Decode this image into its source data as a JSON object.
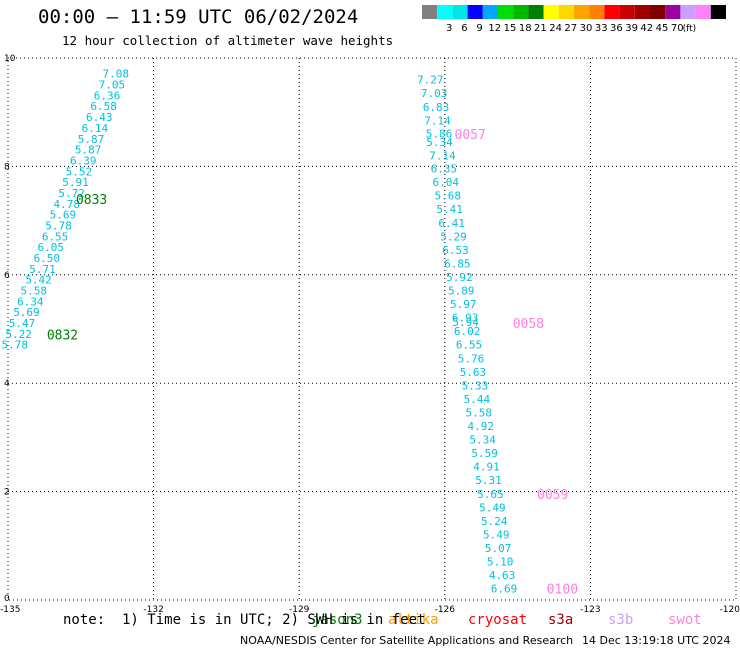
{
  "header": {
    "title": "00:00 – 11:59 UTC 06/02/2024",
    "subtitle": "12 hour collection of altimeter wave heights"
  },
  "colorbar": {
    "colors": [
      "#808080",
      "#00ffff",
      "#00e5e5",
      "#0000ff",
      "#00a8ff",
      "#00e000",
      "#00b800",
      "#008000",
      "#ffff00",
      "#ffd800",
      "#ffa500",
      "#ff7f00",
      "#ff0000",
      "#c80000",
      "#a00000",
      "#800000",
      "#a000a0",
      "#c8a0ff",
      "#ff80ff",
      "#000000"
    ],
    "labels": [
      "3",
      "6",
      "9",
      "12",
      "15",
      "18",
      "21",
      "24",
      "27",
      "30",
      "33",
      "36",
      "39",
      "42",
      "45",
      "70"
    ],
    "unit": "(ft)"
  },
  "axes": {
    "x_ticks": [
      "-135",
      "-132",
      "-129",
      "-126",
      "-123",
      "-120"
    ],
    "y_ticks": [
      "0",
      "2",
      "4",
      "6",
      "8",
      "10"
    ],
    "xlim": [
      -135,
      -120
    ],
    "ylim": [
      0,
      10
    ]
  },
  "tracks": [
    {
      "satellite": "jason3",
      "color": "#00c0e0",
      "points": [
        {
          "lon": -132.78,
          "lat": 9.71,
          "value": "7.08"
        },
        {
          "lon": -132.86,
          "lat": 9.51,
          "value": "7.05"
        },
        {
          "lon": -132.96,
          "lat": 9.31,
          "value": "6.36"
        },
        {
          "lon": -133.03,
          "lat": 9.11,
          "value": "6.58"
        },
        {
          "lon": -133.12,
          "lat": 8.91,
          "value": "6.43"
        },
        {
          "lon": -133.21,
          "lat": 8.71,
          "value": "6.14"
        },
        {
          "lon": -133.29,
          "lat": 8.51,
          "value": "5.87"
        },
        {
          "lon": -133.35,
          "lat": 8.31,
          "value": "5.87"
        },
        {
          "lon": -133.45,
          "lat": 8.11,
          "value": "6.39"
        },
        {
          "lon": -133.54,
          "lat": 7.91,
          "value": "5.52"
        },
        {
          "lon": -133.61,
          "lat": 7.71,
          "value": "5.91"
        },
        {
          "lon": -133.69,
          "lat": 7.51,
          "value": "5.72"
        },
        {
          "lon": -133.79,
          "lat": 7.31,
          "value": "4.78"
        },
        {
          "lon": -133.87,
          "lat": 7.11,
          "value": "5.69"
        },
        {
          "lon": -133.96,
          "lat": 6.91,
          "value": "5.78"
        },
        {
          "lon": -134.03,
          "lat": 6.71,
          "value": "6.55"
        },
        {
          "lon": -134.12,
          "lat": 6.51,
          "value": "6.05"
        },
        {
          "lon": -134.2,
          "lat": 6.31,
          "value": "6.50"
        },
        {
          "lon": -134.29,
          "lat": 6.11,
          "value": "5.71"
        },
        {
          "lon": -134.37,
          "lat": 5.91,
          "value": "5.42"
        },
        {
          "lon": -134.47,
          "lat": 5.71,
          "value": "5.58"
        },
        {
          "lon": -134.54,
          "lat": 5.51,
          "value": "6.34"
        },
        {
          "lon": -134.62,
          "lat": 5.31,
          "value": "5.69"
        },
        {
          "lon": -134.71,
          "lat": 5.11,
          "value": "5.47"
        },
        {
          "lon": -134.78,
          "lat": 4.91,
          "value": "5.22"
        },
        {
          "lon": -134.86,
          "lat": 4.71,
          "value": "5.78"
        }
      ]
    },
    {
      "satellite": "jason3",
      "color": "#00c0e0",
      "points": [
        {
          "lon": -126.3,
          "lat": 9.6,
          "value": "7.27"
        },
        {
          "lon": -126.22,
          "lat": 9.35,
          "value": "7.03"
        },
        {
          "lon": -126.18,
          "lat": 9.1,
          "value": "6.83"
        },
        {
          "lon": -126.15,
          "lat": 8.85,
          "value": "7.14"
        },
        {
          "lon": -126.12,
          "lat": 8.61,
          "value": "5.86"
        },
        {
          "lon": -126.11,
          "lat": 8.45,
          "value": "5.34"
        },
        {
          "lon": -126.05,
          "lat": 8.2,
          "value": "7.14"
        },
        {
          "lon": -126.02,
          "lat": 7.96,
          "value": "6.35"
        },
        {
          "lon": -125.98,
          "lat": 7.71,
          "value": "6.04"
        },
        {
          "lon": -125.94,
          "lat": 7.46,
          "value": "5.68"
        },
        {
          "lon": -125.9,
          "lat": 7.21,
          "value": "5.41"
        },
        {
          "lon": -125.86,
          "lat": 6.96,
          "value": "6.41"
        },
        {
          "lon": -125.82,
          "lat": 6.71,
          "value": "5.29"
        },
        {
          "lon": -125.78,
          "lat": 6.46,
          "value": "6.53"
        },
        {
          "lon": -125.74,
          "lat": 6.21,
          "value": "6.85"
        },
        {
          "lon": -125.7,
          "lat": 5.96,
          "value": "5.92"
        },
        {
          "lon": -125.66,
          "lat": 5.71,
          "value": "5.89"
        },
        {
          "lon": -125.62,
          "lat": 5.46,
          "value": "5.97"
        },
        {
          "lon": -125.58,
          "lat": 5.21,
          "value": "6.93"
        },
        {
          "lon": -125.57,
          "lat": 5.13,
          "value": "5.94"
        },
        {
          "lon": -125.54,
          "lat": 4.96,
          "value": "6.02"
        },
        {
          "lon": -125.5,
          "lat": 4.71,
          "value": "6.55"
        },
        {
          "lon": -125.46,
          "lat": 4.46,
          "value": "5.76"
        },
        {
          "lon": -125.42,
          "lat": 4.21,
          "value": "5.63"
        },
        {
          "lon": -125.38,
          "lat": 3.96,
          "value": "5.33"
        },
        {
          "lon": -125.34,
          "lat": 3.71,
          "value": "5.44"
        },
        {
          "lon": -125.3,
          "lat": 3.46,
          "value": "5.58"
        },
        {
          "lon": -125.26,
          "lat": 3.21,
          "value": "4.92"
        },
        {
          "lon": -125.22,
          "lat": 2.96,
          "value": "5.34"
        },
        {
          "lon": -125.18,
          "lat": 2.71,
          "value": "5.59"
        },
        {
          "lon": -125.14,
          "lat": 2.46,
          "value": "4.91"
        },
        {
          "lon": -125.1,
          "lat": 2.21,
          "value": "5.31"
        },
        {
          "lon": -125.06,
          "lat": 1.96,
          "value": "5.65"
        },
        {
          "lon": -125.02,
          "lat": 1.71,
          "value": "5.49"
        },
        {
          "lon": -124.98,
          "lat": 1.46,
          "value": "5.24"
        },
        {
          "lon": -124.94,
          "lat": 1.21,
          "value": "5.49"
        },
        {
          "lon": -124.9,
          "lat": 0.96,
          "value": "5.07"
        },
        {
          "lon": -124.86,
          "lat": 0.71,
          "value": "5.10"
        },
        {
          "lon": -124.82,
          "lat": 0.46,
          "value": "4.63"
        },
        {
          "lon": -124.78,
          "lat": 0.21,
          "value": "6.69"
        }
      ]
    }
  ],
  "time_labels": [
    {
      "text": "0833",
      "lon": -133.6,
      "lat": 7.4,
      "color": "#008000"
    },
    {
      "text": "0832",
      "lon": -134.2,
      "lat": 4.9,
      "color": "#008000"
    },
    {
      "text": "0057",
      "lon": -125.8,
      "lat": 8.6,
      "color": "#ff80e0"
    },
    {
      "text": "0058",
      "lon": -124.6,
      "lat": 5.11,
      "color": "#ff80e0"
    },
    {
      "text": "0059",
      "lon": -124.1,
      "lat": 1.96,
      "color": "#ff80e0"
    },
    {
      "text": "0100",
      "lon": -123.9,
      "lat": 0.21,
      "color": "#ff80e0"
    }
  ],
  "footer": {
    "note": "note:  1) Time is in UTC; 2) SWH is in feet",
    "legend": [
      {
        "name": "jason3",
        "color": "#008000"
      },
      {
        "name": "altika",
        "color": "#ff9900"
      },
      {
        "name": "cryosat",
        "color": "#ff0000"
      },
      {
        "name": "s3a",
        "color": "#a00000"
      },
      {
        "name": "s3b",
        "color": "#c8a0ff"
      },
      {
        "name": "swot",
        "color": "#ff80e0"
      }
    ],
    "credit": "NOAA/NESDIS Center for Satellite Applications and Research",
    "timestamp": "14 Dec 13:19:18 UTC 2024"
  }
}
